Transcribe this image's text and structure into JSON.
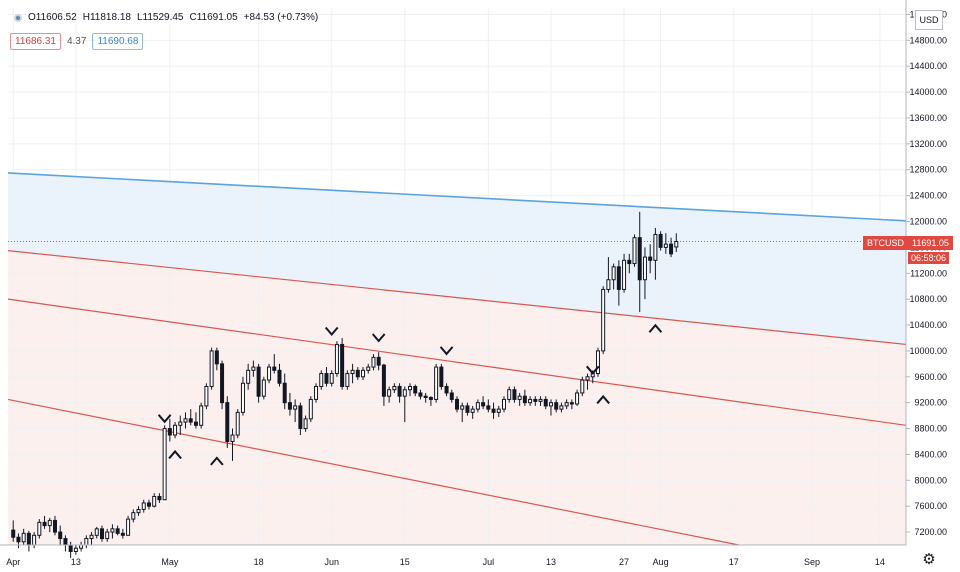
{
  "header": {
    "open": "O11606.52",
    "high": "H11818.18",
    "low": "L11529.45",
    "close": "C11691.05",
    "change": "+84.53 (+0.73%)",
    "bid": "11686.31",
    "spread": "4.37",
    "ask": "11690.68"
  },
  "currency_label": "USD",
  "price_badge": {
    "symbol": "BTCUSD",
    "price": "11691.05",
    "countdown": "06:58:06"
  },
  "colors": {
    "up": "#131722",
    "channel_upper": "#5ba3dd",
    "channel_lower": "#d9574f",
    "badge": "#e0493f",
    "blue_fill": "#eaf3fb",
    "red_fill": "#fcf0ef"
  },
  "chart_data": {
    "type": "candlestick",
    "symbol": "BTCUSD",
    "interval": "1D",
    "y_ticks": [
      15200,
      14800,
      14400,
      14000,
      13600,
      13200,
      12800,
      12400,
      12000,
      11600,
      11200,
      10800,
      10400,
      10000,
      9600,
      9200,
      8800,
      8400,
      8000,
      7600,
      7200
    ],
    "y_tick_labels": [
      "15200.00",
      "14800.00",
      "14400.00",
      "14000.00",
      "13600.00",
      "13200.00",
      "12800.00",
      "12400.00",
      "12000.00",
      "11600.00",
      "11200.00",
      "10800.00",
      "10400.00",
      "10000.00",
      "9600.00",
      "9200.00",
      "8800.00",
      "8400.00",
      "8000.00",
      "7600.00",
      "7200.00"
    ],
    "ylim": [
      7000,
      15300
    ],
    "x_start": "2020-03-31",
    "x_end": "2020-09-19",
    "x_ticks": [
      {
        "date": "2020-04-01",
        "label": "Apr"
      },
      {
        "date": "2020-04-13",
        "label": "13"
      },
      {
        "date": "2020-05-01",
        "label": "May"
      },
      {
        "date": "2020-05-18",
        "label": "18"
      },
      {
        "date": "2020-06-01",
        "label": "Jun"
      },
      {
        "date": "2020-06-15",
        "label": "15"
      },
      {
        "date": "2020-07-01",
        "label": "Jul"
      },
      {
        "date": "2020-07-13",
        "label": "13"
      },
      {
        "date": "2020-07-27",
        "label": "27"
      },
      {
        "date": "2020-08-03",
        "label": "Aug"
      },
      {
        "date": "2020-08-17",
        "label": "17"
      },
      {
        "date": "2020-09-01",
        "label": "Sep"
      },
      {
        "date": "2020-09-14",
        "label": "14"
      }
    ],
    "last_price": 11691.05,
    "start_date": "2020-04-01",
    "candles": [
      [
        7230,
        7380,
        7050,
        7120
      ],
      [
        7120,
        7180,
        6950,
        7050
      ],
      [
        7050,
        7250,
        7000,
        7180
      ],
      [
        7180,
        7220,
        6900,
        7000
      ],
      [
        7000,
        7200,
        6950,
        7150
      ],
      [
        7150,
        7400,
        7100,
        7350
      ],
      [
        7350,
        7450,
        7250,
        7300
      ],
      [
        7300,
        7420,
        7200,
        7380
      ],
      [
        7380,
        7450,
        7150,
        7200
      ],
      [
        7200,
        7300,
        7000,
        7100
      ],
      [
        7100,
        7150,
        6900,
        7000
      ],
      [
        7000,
        7050,
        6800,
        6900
      ],
      [
        6900,
        7000,
        6850,
        6950
      ],
      [
        6950,
        7050,
        6900,
        7000
      ],
      [
        7000,
        7150,
        6950,
        7100
      ],
      [
        7100,
        7200,
        7000,
        7150
      ],
      [
        7150,
        7280,
        7100,
        7250
      ],
      [
        7250,
        7300,
        7050,
        7100
      ],
      [
        7100,
        7250,
        7050,
        7200
      ],
      [
        7200,
        7320,
        7100,
        7250
      ],
      [
        7250,
        7300,
        7150,
        7180
      ],
      [
        7180,
        7250,
        7100,
        7150
      ],
      [
        7150,
        7450,
        7150,
        7400
      ],
      [
        7400,
        7550,
        7350,
        7500
      ],
      [
        7500,
        7600,
        7450,
        7550
      ],
      [
        7550,
        7700,
        7500,
        7650
      ],
      [
        7650,
        7700,
        7550,
        7600
      ],
      [
        7600,
        7800,
        7580,
        7750
      ],
      [
        7750,
        7800,
        7650,
        7700
      ],
      [
        7700,
        8850,
        7700,
        8800
      ],
      [
        8800,
        8950,
        8600,
        8700
      ],
      [
        8700,
        8900,
        8650,
        8850
      ],
      [
        8850,
        9000,
        8700,
        8900
      ],
      [
        8900,
        9050,
        8800,
        8950
      ],
      [
        8950,
        9100,
        8850,
        8900
      ],
      [
        8900,
        9050,
        8800,
        8850
      ],
      [
        8850,
        9200,
        8800,
        9150
      ],
      [
        9150,
        9500,
        9100,
        9450
      ],
      [
        9450,
        10050,
        9400,
        10000
      ],
      [
        10000,
        10050,
        9700,
        9800
      ],
      [
        9800,
        9850,
        9100,
        9200
      ],
      [
        9200,
        9300,
        8500,
        8600
      ],
      [
        8600,
        8800,
        8300,
        8700
      ],
      [
        8700,
        9100,
        8650,
        9050
      ],
      [
        9050,
        9600,
        9000,
        9500
      ],
      [
        9500,
        9800,
        9400,
        9700
      ],
      [
        9700,
        9850,
        9600,
        9750
      ],
      [
        9750,
        9800,
        9200,
        9300
      ],
      [
        9300,
        9600,
        9250,
        9550
      ],
      [
        9550,
        9800,
        9500,
        9750
      ],
      [
        9750,
        9950,
        9650,
        9700
      ],
      [
        9700,
        9800,
        9450,
        9500
      ],
      [
        9500,
        9650,
        9100,
        9200
      ],
      [
        9200,
        9350,
        9000,
        9100
      ],
      [
        9100,
        9250,
        8900,
        9150
      ],
      [
        9150,
        9200,
        8700,
        8800
      ],
      [
        8800,
        9000,
        8750,
        8950
      ],
      [
        8950,
        9300,
        8900,
        9250
      ],
      [
        9250,
        9500,
        9200,
        9450
      ],
      [
        9450,
        9700,
        9400,
        9650
      ],
      [
        9650,
        9750,
        9450,
        9500
      ],
      [
        9500,
        9700,
        9450,
        9650
      ],
      [
        9650,
        10150,
        9600,
        10100
      ],
      [
        10100,
        10200,
        9400,
        9450
      ],
      [
        9450,
        9700,
        9400,
        9650
      ],
      [
        9650,
        9800,
        9500,
        9700
      ],
      [
        9700,
        9750,
        9550,
        9600
      ],
      [
        9600,
        9750,
        9550,
        9700
      ],
      [
        9700,
        9800,
        9650,
        9750
      ],
      [
        9750,
        9950,
        9700,
        9900
      ],
      [
        9900,
        9980,
        9700,
        9780
      ],
      [
        9780,
        9800,
        9150,
        9300
      ],
      [
        9300,
        9450,
        9200,
        9400
      ],
      [
        9400,
        9500,
        9350,
        9450
      ],
      [
        9450,
        9500,
        9200,
        9300
      ],
      [
        9300,
        9450,
        8900,
        9400
      ],
      [
        9400,
        9500,
        9300,
        9450
      ],
      [
        9450,
        9480,
        9300,
        9350
      ],
      [
        9350,
        9400,
        9250,
        9300
      ],
      [
        9300,
        9350,
        9200,
        9280
      ],
      [
        9280,
        9300,
        9150,
        9250
      ],
      [
        9250,
        9800,
        9200,
        9750
      ],
      [
        9750,
        9800,
        9400,
        9450
      ],
      [
        9450,
        9500,
        9300,
        9350
      ],
      [
        9350,
        9400,
        9200,
        9250
      ],
      [
        9250,
        9300,
        9050,
        9100
      ],
      [
        9100,
        9200,
        8900,
        9150
      ],
      [
        9150,
        9200,
        9000,
        9050
      ],
      [
        9050,
        9150,
        8950,
        9100
      ],
      [
        9100,
        9250,
        9050,
        9200
      ],
      [
        9200,
        9300,
        9100,
        9150
      ],
      [
        9150,
        9250,
        9050,
        9100
      ],
      [
        9100,
        9200,
        8950,
        9050
      ],
      [
        9050,
        9150,
        8980,
        9100
      ],
      [
        9100,
        9300,
        9050,
        9250
      ],
      [
        9250,
        9450,
        9200,
        9400
      ],
      [
        9400,
        9450,
        9200,
        9250
      ],
      [
        9250,
        9350,
        9150,
        9300
      ],
      [
        9300,
        9400,
        9150,
        9200
      ],
      [
        9200,
        9300,
        9150,
        9250
      ],
      [
        9250,
        9300,
        9150,
        9220
      ],
      [
        9220,
        9300,
        9150,
        9250
      ],
      [
        9250,
        9300,
        9100,
        9150
      ],
      [
        9150,
        9250,
        9000,
        9200
      ],
      [
        9200,
        9250,
        9050,
        9100
      ],
      [
        9100,
        9200,
        9050,
        9150
      ],
      [
        9150,
        9250,
        9100,
        9200
      ],
      [
        9200,
        9250,
        9100,
        9180
      ],
      [
        9180,
        9400,
        9150,
        9350
      ],
      [
        9350,
        9600,
        9300,
        9550
      ],
      [
        9550,
        9650,
        9400,
        9600
      ],
      [
        9600,
        9700,
        9500,
        9650
      ],
      [
        9650,
        10050,
        9600,
        10000
      ],
      [
        10000,
        11000,
        9950,
        10950
      ],
      [
        10950,
        11450,
        10900,
        11100
      ],
      [
        11100,
        11350,
        10950,
        11300
      ],
      [
        11300,
        11400,
        10700,
        10950
      ],
      [
        10950,
        11500,
        10900,
        11400
      ],
      [
        11400,
        11500,
        11200,
        11350
      ],
      [
        11350,
        11800,
        11300,
        11750
      ],
      [
        11750,
        12150,
        10600,
        11100
      ],
      [
        11100,
        11600,
        10800,
        11450
      ],
      [
        11450,
        11650,
        11200,
        11400
      ],
      [
        11400,
        11900,
        11100,
        11800
      ],
      [
        11800,
        11850,
        11550,
        11600
      ],
      [
        11600,
        11820,
        11500,
        11650
      ],
      [
        11650,
        11750,
        11450,
        11500
      ],
      [
        11606.52,
        11818.18,
        11529.45,
        11691.05
      ]
    ],
    "channel_lines": [
      {
        "name": "upper-blue",
        "color": "blue",
        "from": {
          "date": "2020-03-31",
          "price": 12750
        },
        "to": {
          "date": "2020-09-19",
          "price": 12010
        }
      },
      {
        "name": "red-1",
        "color": "red",
        "from": {
          "date": "2020-03-31",
          "price": 11550
        },
        "to": {
          "date": "2020-09-19",
          "price": 10100
        }
      },
      {
        "name": "red-2",
        "color": "red",
        "from": {
          "date": "2020-03-31",
          "price": 10800
        },
        "to": {
          "date": "2020-09-19",
          "price": 8850
        }
      },
      {
        "name": "red-3",
        "color": "red",
        "from": {
          "date": "2020-03-31",
          "price": 9250
        },
        "to": {
          "date": "2020-08-18",
          "price": 7000
        }
      }
    ],
    "markers": [
      {
        "date": "2020-04-30",
        "price": 8950,
        "type": "down"
      },
      {
        "date": "2020-05-02",
        "price": 8400,
        "type": "up"
      },
      {
        "date": "2020-05-10",
        "price": 8300,
        "type": "up"
      },
      {
        "date": "2020-06-01",
        "price": 10300,
        "type": "down"
      },
      {
        "date": "2020-06-10",
        "price": 10200,
        "type": "down"
      },
      {
        "date": "2020-06-23",
        "price": 10000,
        "type": "down"
      },
      {
        "date": "2020-07-21",
        "price": 9700,
        "type": "down"
      },
      {
        "date": "2020-07-23",
        "price": 9250,
        "type": "up"
      },
      {
        "date": "2020-08-02",
        "price": 10350,
        "type": "up"
      }
    ]
  }
}
